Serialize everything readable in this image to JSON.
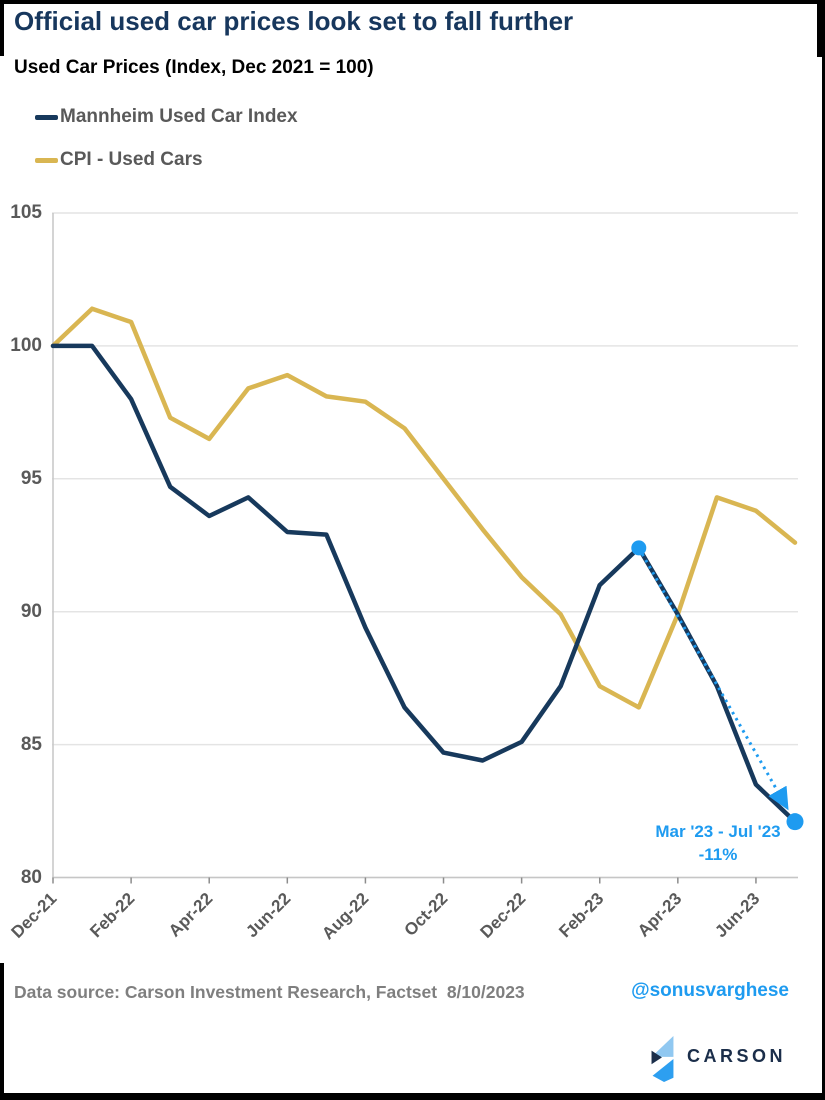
{
  "header": {
    "title": "Official used car prices look set to fall further",
    "subtitle": "Used Car Prices (Index, Dec 2021 = 100)"
  },
  "legend": {
    "items": [
      {
        "label": "Mannheim Used Car Index",
        "color": "#17395c"
      },
      {
        "label": "CPI - Used Cars",
        "color": "#d9b652"
      }
    ]
  },
  "chart_data": {
    "type": "line",
    "title": "Official used car prices look set to fall further",
    "subtitle": "Used Car Prices (Index, Dec 2021 = 100)",
    "x": [
      "Dec-21",
      "Jan-22",
      "Feb-22",
      "Mar-22",
      "Apr-22",
      "May-22",
      "Jun-22",
      "Jul-22",
      "Aug-22",
      "Sep-22",
      "Oct-22",
      "Nov-22",
      "Dec-22",
      "Jan-23",
      "Feb-23",
      "Mar-23",
      "Apr-23",
      "May-23",
      "Jun-23",
      "Jul-23"
    ],
    "xtick_every": 2,
    "series": [
      {
        "name": "Mannheim Used Car Index",
        "color": "#17395c",
        "values": [
          100.0,
          100.0,
          98.0,
          94.7,
          93.6,
          94.3,
          93.0,
          92.9,
          89.4,
          86.4,
          84.7,
          84.4,
          85.1,
          87.2,
          91.0,
          92.4,
          89.9,
          87.2,
          83.5,
          82.1
        ]
      },
      {
        "name": "CPI - Used Cars",
        "color": "#d9b652",
        "values": [
          100.0,
          101.4,
          100.9,
          97.3,
          96.5,
          98.4,
          98.9,
          98.1,
          97.9,
          96.9,
          95.0,
          93.1,
          91.3,
          89.9,
          87.2,
          86.4,
          89.9,
          94.3,
          93.8,
          92.6
        ]
      }
    ],
    "ylim": [
      80,
      105
    ],
    "yticks": [
      80,
      85,
      90,
      95,
      100,
      105
    ],
    "grid": "horizontal",
    "legend_position": "top-left",
    "annotation": {
      "text_line1": "Mar '23 - Jul '23",
      "text_line2": "-11%",
      "color": "#1e9bf0",
      "from": {
        "x": "Mar-23",
        "value": 92.4
      },
      "to": {
        "x": "Jul-23",
        "value": 82.1
      },
      "style": "dotted arrow between highlighted endpoint dots"
    }
  },
  "footer": {
    "source": "Data source: Carson Investment Research, Factset",
    "date": "8/10/2023",
    "handle": "@sonusvarghese",
    "brand": "CARSON"
  },
  "colors": {
    "title_navy": "#17375d",
    "navy_line": "#17395c",
    "gold_line": "#d9b652",
    "accent_blue": "#1e9bf0",
    "gridline": "#e4e4e4",
    "axis_line": "#c6c6c6",
    "tick": "#8c8c8c",
    "axis_text": "#595959",
    "footer_text": "#7f7f7f",
    "logo_navy": "#1b2e4a"
  }
}
